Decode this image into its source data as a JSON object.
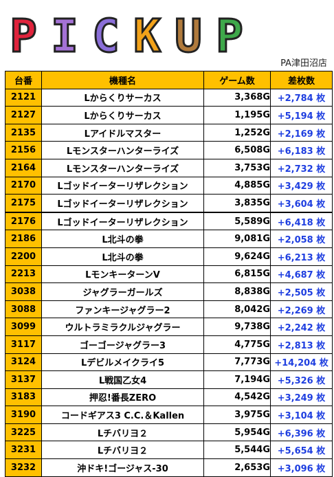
{
  "banner": {
    "letters": [
      {
        "char": "P",
        "color": "#e0233c"
      },
      {
        "char": "I",
        "color": "#a472d6"
      },
      {
        "char": "C",
        "color": "#8a6ed8"
      },
      {
        "char": "K",
        "color": "#f2a21a"
      },
      {
        "char": "U",
        "color": "#b07a3c"
      },
      {
        "char": "P",
        "color": "#3ea84a"
      }
    ],
    "store_name": "PA津田沼店"
  },
  "table": {
    "headers": {
      "machine_no": "台番",
      "model": "機種名",
      "games": "ゲーム数",
      "diff": "差枚数"
    },
    "rows": [
      {
        "no": "2121",
        "model": "Lからくりサーカス",
        "games": "3,368G",
        "diff": "+2,784 枚"
      },
      {
        "no": "2127",
        "model": "Lからくりサーカス",
        "games": "1,195G",
        "diff": "+5,194 枚"
      },
      {
        "no": "2135",
        "model": "Lアイドルマスター",
        "games": "1,252G",
        "diff": "+2,169 枚"
      },
      {
        "no": "2156",
        "model": "Lモンスターハンターライズ",
        "games": "6,508G",
        "diff": "+6,183 枚"
      },
      {
        "no": "2164",
        "model": "Lモンスターハンターライズ",
        "games": "3,753G",
        "diff": "+2,732 枚"
      },
      {
        "no": "2170",
        "model": "Lゴッドイーターリザレクション",
        "games": "4,885G",
        "diff": "+3,429 枚"
      },
      {
        "no": "2175",
        "model": "Lゴッドイーターリザレクション",
        "games": "3,835G",
        "diff": "+3,604 枚"
      },
      {
        "no": "2176",
        "model": "Lゴッドイーターリザレクション",
        "games": "5,589G",
        "diff": "+6,418 枚"
      },
      {
        "no": "2186",
        "model": "L北斗の拳",
        "games": "9,081G",
        "diff": "+2,058 枚"
      },
      {
        "no": "2200",
        "model": "L北斗の拳",
        "games": "9,624G",
        "diff": "+6,213 枚"
      },
      {
        "no": "2213",
        "model": "LモンキーターンV",
        "games": "6,815G",
        "diff": "+4,687 枚"
      },
      {
        "no": "3038",
        "model": "ジャグラーガールズ",
        "games": "8,838G",
        "diff": "+2,505 枚"
      },
      {
        "no": "3088",
        "model": "ファンキージャグラー2",
        "games": "8,042G",
        "diff": "+2,269 枚"
      },
      {
        "no": "3099",
        "model": "ウルトラミラクルジャグラー",
        "games": "9,738G",
        "diff": "+2,242 枚"
      },
      {
        "no": "3117",
        "model": "ゴーゴージャグラー3",
        "games": "4,775G",
        "diff": "+2,813 枚"
      },
      {
        "no": "3124",
        "model": "Lデビルメイクライ5",
        "games": "7,773G",
        "diff": "+14,204 枚"
      },
      {
        "no": "3137",
        "model": "L戦国乙女4",
        "games": "7,194G",
        "diff": "+5,326 枚"
      },
      {
        "no": "3183",
        "model": "押忍!番長ZERO",
        "games": "4,542G",
        "diff": "+3,249 枚"
      },
      {
        "no": "3190",
        "model": "コードギアス3 C.C.＆Kallen",
        "games": "3,975G",
        "diff": "+3,104 枚"
      },
      {
        "no": "3225",
        "model": "Lチバリヨ２",
        "games": "5,954G",
        "diff": "+6,396 枚"
      },
      {
        "no": "3231",
        "model": "Lチバリヨ２",
        "games": "5,544G",
        "diff": "+5,654 枚"
      },
      {
        "no": "3232",
        "model": "沖ドキ!ゴージャス-30",
        "games": "2,653G",
        "diff": "+3,096 枚"
      }
    ]
  },
  "colors": {
    "header_bg": "#ffc000",
    "diff_text": "#1f3fe0"
  }
}
